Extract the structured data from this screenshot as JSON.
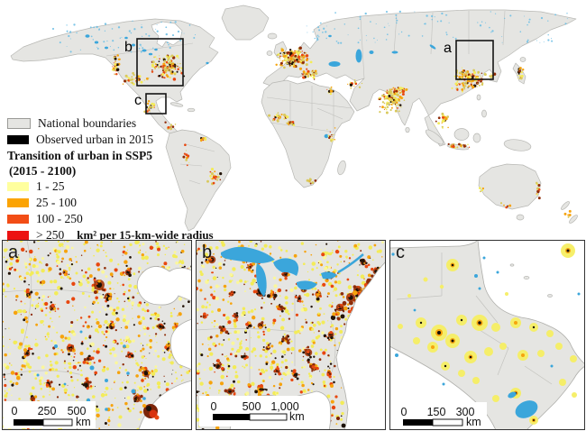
{
  "figure": {
    "colors": {
      "land": "#e5e5e2",
      "boundary": "#b7b7b3",
      "water": "#3ba6db",
      "observed_urban": "#000000",
      "class_1_25": "#ffff9e",
      "class_25_100": "#fba405",
      "class_100_250": "#f24d16",
      "class_over_250": "#ec1212"
    },
    "legend": {
      "items": [
        {
          "label": "National boundaries"
        },
        {
          "label": "Observed urban in 2015"
        }
      ],
      "title_line1": "Transition of urban in SSP5",
      "title_line2": "(2015 - 2100)",
      "classes": [
        {
          "label": "1 - 25"
        },
        {
          "label": "25 - 100"
        },
        {
          "label": "100 - 250"
        },
        {
          "label": "> 250"
        }
      ],
      "unit_label": "km² per 15-km-wide radius"
    },
    "world_map": {
      "markers": [
        {
          "label": "a"
        },
        {
          "label": "b"
        },
        {
          "label": "c"
        }
      ]
    },
    "insets": [
      {
        "label": "a",
        "scale_ticks": [
          "0",
          "250",
          "500"
        ],
        "unit": "km"
      },
      {
        "label": "b",
        "scale_ticks": [
          "0",
          "500",
          "1,000"
        ],
        "unit": "km"
      },
      {
        "label": "c",
        "scale_ticks": [
          "0",
          "150",
          "300"
        ],
        "unit": "km"
      }
    ]
  }
}
